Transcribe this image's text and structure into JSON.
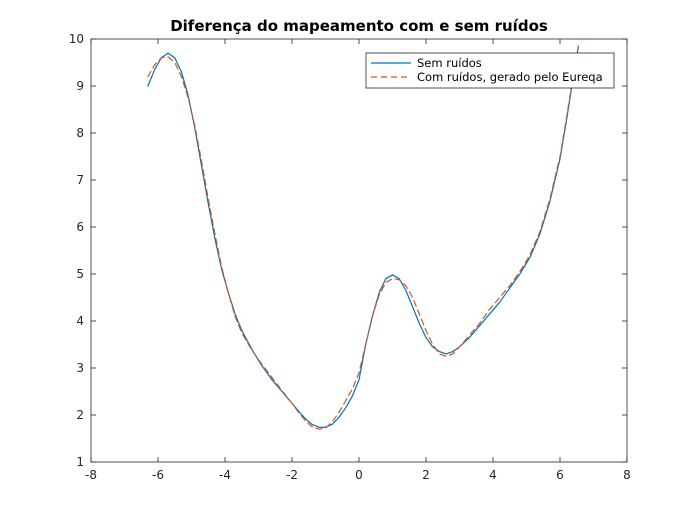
{
  "chart_data": {
    "type": "line",
    "title": "Diferença do mapeamento com e sem ruídos",
    "xlabel": "",
    "ylabel": "",
    "xlim": [
      -8,
      8
    ],
    "ylim": [
      1,
      10
    ],
    "xticks": [
      -8,
      -6,
      -4,
      -2,
      0,
      2,
      4,
      6,
      8
    ],
    "yticks": [
      1,
      2,
      3,
      4,
      5,
      6,
      7,
      8,
      9,
      10
    ],
    "grid": false,
    "legend_position": "top-right",
    "series": [
      {
        "name": "Sem ruídos",
        "color": "#0072BD",
        "line_style": "solid",
        "points": [
          [
            -6.3,
            9.0
          ],
          [
            -6.1,
            9.35
          ],
          [
            -5.9,
            9.6
          ],
          [
            -5.7,
            9.7
          ],
          [
            -5.5,
            9.6
          ],
          [
            -5.3,
            9.3
          ],
          [
            -5.1,
            8.8
          ],
          [
            -4.9,
            8.1
          ],
          [
            -4.7,
            7.3
          ],
          [
            -4.5,
            6.5
          ],
          [
            -4.3,
            5.75
          ],
          [
            -4.1,
            5.1
          ],
          [
            -3.9,
            4.6
          ],
          [
            -3.7,
            4.15
          ],
          [
            -3.5,
            3.8
          ],
          [
            -3.2,
            3.4
          ],
          [
            -2.9,
            3.05
          ],
          [
            -2.6,
            2.75
          ],
          [
            -2.3,
            2.5
          ],
          [
            -2.0,
            2.25
          ],
          [
            -1.8,
            2.08
          ],
          [
            -1.6,
            1.92
          ],
          [
            -1.4,
            1.8
          ],
          [
            -1.2,
            1.74
          ],
          [
            -1.0,
            1.74
          ],
          [
            -0.8,
            1.8
          ],
          [
            -0.6,
            1.95
          ],
          [
            -0.4,
            2.15
          ],
          [
            -0.2,
            2.4
          ],
          [
            0.0,
            2.75
          ],
          [
            0.2,
            3.5
          ],
          [
            0.4,
            4.1
          ],
          [
            0.6,
            4.6
          ],
          [
            0.8,
            4.9
          ],
          [
            1.0,
            4.98
          ],
          [
            1.2,
            4.9
          ],
          [
            1.4,
            4.65
          ],
          [
            1.6,
            4.3
          ],
          [
            1.8,
            3.95
          ],
          [
            2.0,
            3.65
          ],
          [
            2.2,
            3.45
          ],
          [
            2.4,
            3.35
          ],
          [
            2.6,
            3.3
          ],
          [
            2.8,
            3.35
          ],
          [
            3.0,
            3.45
          ],
          [
            3.3,
            3.65
          ],
          [
            3.6,
            3.9
          ],
          [
            3.9,
            4.15
          ],
          [
            4.2,
            4.4
          ],
          [
            4.5,
            4.7
          ],
          [
            4.8,
            5.0
          ],
          [
            5.1,
            5.35
          ],
          [
            5.4,
            5.85
          ],
          [
            5.7,
            6.55
          ],
          [
            6.0,
            7.45
          ],
          [
            6.2,
            8.3
          ],
          [
            6.4,
            9.2
          ],
          [
            6.55,
            9.85
          ]
        ]
      },
      {
        "name": "Com ruídos, gerado pelo Eureqa",
        "color": "#D95319",
        "line_style": "dashed",
        "points": [
          [
            -6.3,
            9.2
          ],
          [
            -6.1,
            9.45
          ],
          [
            -5.9,
            9.6
          ],
          [
            -5.7,
            9.62
          ],
          [
            -5.5,
            9.5
          ],
          [
            -5.3,
            9.2
          ],
          [
            -5.1,
            8.75
          ],
          [
            -4.9,
            8.15
          ],
          [
            -4.7,
            7.4
          ],
          [
            -4.5,
            6.6
          ],
          [
            -4.3,
            5.85
          ],
          [
            -4.1,
            5.15
          ],
          [
            -3.9,
            4.6
          ],
          [
            -3.7,
            4.1
          ],
          [
            -3.5,
            3.75
          ],
          [
            -3.2,
            3.38
          ],
          [
            -2.9,
            3.08
          ],
          [
            -2.6,
            2.8
          ],
          [
            -2.3,
            2.52
          ],
          [
            -2.0,
            2.25
          ],
          [
            -1.8,
            2.05
          ],
          [
            -1.6,
            1.88
          ],
          [
            -1.4,
            1.75
          ],
          [
            -1.2,
            1.7
          ],
          [
            -1.0,
            1.72
          ],
          [
            -0.8,
            1.85
          ],
          [
            -0.6,
            2.05
          ],
          [
            -0.4,
            2.3
          ],
          [
            -0.2,
            2.55
          ],
          [
            0.0,
            2.9
          ],
          [
            0.2,
            3.5
          ],
          [
            0.4,
            4.1
          ],
          [
            0.6,
            4.55
          ],
          [
            0.8,
            4.82
          ],
          [
            1.0,
            4.9
          ],
          [
            1.2,
            4.88
          ],
          [
            1.4,
            4.75
          ],
          [
            1.6,
            4.5
          ],
          [
            1.8,
            4.15
          ],
          [
            2.0,
            3.8
          ],
          [
            2.2,
            3.5
          ],
          [
            2.4,
            3.3
          ],
          [
            2.6,
            3.25
          ],
          [
            2.8,
            3.3
          ],
          [
            3.0,
            3.45
          ],
          [
            3.3,
            3.7
          ],
          [
            3.6,
            3.95
          ],
          [
            3.9,
            4.25
          ],
          [
            4.2,
            4.5
          ],
          [
            4.5,
            4.75
          ],
          [
            4.8,
            5.05
          ],
          [
            5.1,
            5.4
          ],
          [
            5.4,
            5.9
          ],
          [
            5.7,
            6.6
          ],
          [
            6.0,
            7.5
          ],
          [
            6.2,
            8.35
          ],
          [
            6.4,
            9.25
          ],
          [
            6.55,
            9.85
          ]
        ]
      }
    ]
  }
}
